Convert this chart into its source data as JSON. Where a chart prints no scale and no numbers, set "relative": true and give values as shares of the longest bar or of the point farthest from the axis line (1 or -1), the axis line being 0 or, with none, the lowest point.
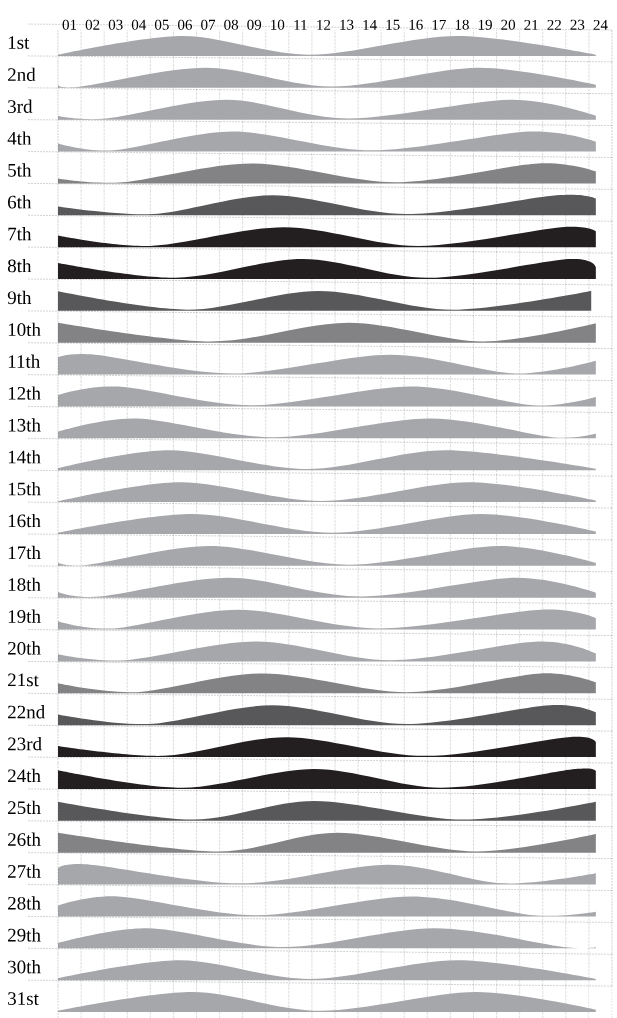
{
  "chart_data": [
    {
      "type": "area",
      "title": "1st",
      "relative": true,
      "color": "#a6a7ab",
      "xlim": [
        0,
        24
      ],
      "grid": true,
      "tick_labels": "x",
      "xticks": [
        {
          "value": 0.5,
          "label": "01"
        },
        {
          "value": 1.5,
          "label": "02"
        },
        {
          "value": 2.5,
          "label": "03"
        },
        {
          "value": 3.5,
          "label": "04"
        },
        {
          "value": 4.5,
          "label": "05"
        },
        {
          "value": 5.5,
          "label": "06"
        },
        {
          "value": 6.5,
          "label": "07"
        },
        {
          "value": 7.5,
          "label": "08"
        },
        {
          "value": 8.5,
          "label": "09"
        },
        {
          "value": 9.5,
          "label": "10"
        },
        {
          "value": 10.5,
          "label": "11"
        },
        {
          "value": 11.5,
          "label": "12"
        },
        {
          "value": 12.5,
          "label": "13"
        },
        {
          "value": 13.5,
          "label": "14"
        },
        {
          "value": 14.5,
          "label": "15"
        },
        {
          "value": 15.5,
          "label": "16"
        },
        {
          "value": 16.5,
          "label": "17"
        },
        {
          "value": 17.5,
          "label": "18"
        },
        {
          "value": 18.5,
          "label": "19"
        },
        {
          "value": 19.5,
          "label": "20"
        },
        {
          "value": 20.5,
          "label": "21"
        },
        {
          "value": 21.5,
          "label": "22"
        },
        {
          "value": 22.5,
          "label": "23"
        },
        {
          "value": 23.5,
          "label": "24"
        }
      ],
      "x": [
        0,
        5.4,
        10.9,
        17.3,
        23.3
      ],
      "values": [
        0.06,
        1,
        0.06,
        1,
        0.06
      ]
    },
    {
      "type": "area",
      "title": "2nd",
      "relative": true,
      "color": "#a6a7ab",
      "xlim": [
        0,
        24
      ],
      "grid": true,
      "tick_labels": false,
      "xticks": [
        0.5,
        1.5,
        2.5,
        3.5,
        4.5,
        5.5,
        6.5,
        7.5,
        8.5,
        9.5,
        10.5,
        11.5,
        12.5,
        13.5,
        14.5,
        15.5,
        16.5,
        17.5,
        18.5,
        19.5,
        20.5,
        21.5,
        22.5,
        23.5
      ],
      "x": [
        0,
        1,
        6.4,
        11.9,
        18.2,
        23.3
      ],
      "values": [
        0.14,
        0.06,
        1,
        0.06,
        1,
        0.15
      ]
    },
    {
      "type": "area",
      "title": "3rd",
      "relative": true,
      "color": "#a6a7ab",
      "xlim": [
        0,
        24
      ],
      "grid": true,
      "tick_labels": false,
      "xticks": [
        0.5,
        1.5,
        2.5,
        3.5,
        4.5,
        5.5,
        6.5,
        7.5,
        8.5,
        9.5,
        10.5,
        11.5,
        12.5,
        13.5,
        14.5,
        15.5,
        16.5,
        17.5,
        18.5,
        19.5,
        20.5,
        21.5,
        22.5,
        23.5
      ],
      "x": [
        0,
        2.1,
        7.3,
        12.6,
        19.6,
        23.3
      ],
      "values": [
        0.18,
        0.06,
        1,
        0.06,
        1,
        0.2
      ]
    },
    {
      "type": "area",
      "title": "4th",
      "relative": true,
      "color": "#a6a7ab",
      "xlim": [
        0,
        24
      ],
      "grid": true,
      "tick_labels": false,
      "xticks": [
        0.5,
        1.5,
        2.5,
        3.5,
        4.5,
        5.5,
        6.5,
        7.5,
        8.5,
        9.5,
        10.5,
        11.5,
        12.5,
        13.5,
        14.5,
        15.5,
        16.5,
        17.5,
        18.5,
        19.5,
        20.5,
        21.5,
        22.5,
        23.5
      ],
      "x": [
        0,
        2.4,
        7.6,
        13.6,
        20.4,
        23.3
      ],
      "values": [
        0.4,
        0.06,
        1,
        0.06,
        1,
        0.5
      ]
    },
    {
      "type": "area",
      "title": "5th",
      "relative": true,
      "color": "#838386",
      "xlim": [
        0,
        24
      ],
      "grid": true,
      "tick_labels": false,
      "xticks": [
        0.5,
        1.5,
        2.5,
        3.5,
        4.5,
        5.5,
        6.5,
        7.5,
        8.5,
        9.5,
        10.5,
        11.5,
        12.5,
        13.5,
        14.5,
        15.5,
        16.5,
        17.5,
        18.5,
        19.5,
        20.5,
        21.5,
        22.5,
        23.5
      ],
      "x": [
        0,
        2.8,
        8.4,
        14.6,
        20.8,
        23.3
      ],
      "values": [
        0.25,
        0.06,
        1,
        0.06,
        1,
        0.6
      ]
    },
    {
      "type": "area",
      "title": "6th",
      "relative": true,
      "color": "#58585a",
      "xlim": [
        0,
        24
      ],
      "grid": true,
      "tick_labels": false,
      "xticks": [
        0.5,
        1.5,
        2.5,
        3.5,
        4.5,
        5.5,
        6.5,
        7.5,
        8.5,
        9.5,
        10.5,
        11.5,
        12.5,
        13.5,
        14.5,
        15.5,
        16.5,
        17.5,
        18.5,
        19.5,
        20.5,
        21.5,
        22.5,
        23.5
      ],
      "x": [
        0,
        4.1,
        9.3,
        15.1,
        21.6,
        23.3
      ],
      "values": [
        0.44,
        0.06,
        1,
        0.06,
        1,
        0.84
      ]
    },
    {
      "type": "area",
      "title": "7th",
      "relative": true,
      "color": "#231f20",
      "xlim": [
        0,
        24
      ],
      "grid": true,
      "tick_labels": false,
      "xticks": [
        0.5,
        1.5,
        2.5,
        3.5,
        4.5,
        5.5,
        6.5,
        7.5,
        8.5,
        9.5,
        10.5,
        11.5,
        12.5,
        13.5,
        14.5,
        15.5,
        16.5,
        17.5,
        18.5,
        19.5,
        20.5,
        21.5,
        22.5,
        23.5
      ],
      "x": [
        0,
        4,
        9.8,
        15.6,
        21.8,
        23.3
      ],
      "values": [
        0.58,
        0.06,
        1,
        0.06,
        1,
        0.8
      ]
    },
    {
      "type": "area",
      "title": "8th",
      "relative": true,
      "color": "#231f20",
      "xlim": [
        0,
        24
      ],
      "grid": true,
      "tick_labels": false,
      "xticks": [
        0.5,
        1.5,
        2.5,
        3.5,
        4.5,
        5.5,
        6.5,
        7.5,
        8.5,
        9.5,
        10.5,
        11.5,
        12.5,
        13.5,
        14.5,
        15.5,
        16.5,
        17.5,
        18.5,
        19.5,
        20.5,
        21.5,
        22.5,
        23.5
      ],
      "x": [
        0,
        5.1,
        10.6,
        16,
        22.1,
        23.3
      ],
      "values": [
        0.8,
        0.06,
        1,
        0.06,
        1,
        0.6
      ]
    },
    {
      "type": "area",
      "title": "9th",
      "relative": true,
      "color": "#58585a",
      "xlim": [
        0,
        24
      ],
      "grid": true,
      "tick_labels": false,
      "xticks": [
        0.5,
        1.5,
        2.5,
        3.5,
        4.5,
        5.5,
        6.5,
        7.5,
        8.5,
        9.5,
        10.5,
        11.5,
        12.5,
        13.5,
        14.5,
        15.5,
        16.5,
        17.5,
        18.5,
        19.5,
        20.5,
        21.5,
        22.5,
        23.5
      ],
      "x": [
        0,
        5.6,
        11.3,
        17.1,
        23.1
      ],
      "values": [
        0.98,
        0.06,
        1,
        0.06,
        1
      ]
    },
    {
      "type": "area",
      "title": "10th",
      "relative": true,
      "color": "#838386",
      "xlim": [
        0,
        24
      ],
      "grid": true,
      "tick_labels": false,
      "xticks": [
        0.5,
        1.5,
        2.5,
        3.5,
        4.5,
        5.5,
        6.5,
        7.5,
        8.5,
        9.5,
        10.5,
        11.5,
        12.5,
        13.5,
        14.5,
        15.5,
        16.5,
        17.5,
        18.5,
        19.5,
        20.5,
        21.5,
        22.5,
        23.5
      ],
      "x": [
        0,
        6.6,
        12.6,
        18.4,
        23.3
      ],
      "values": [
        1,
        0.06,
        1,
        0.06,
        0.98
      ]
    },
    {
      "type": "area",
      "title": "11th",
      "relative": true,
      "color": "#a6a7ab",
      "xlim": [
        0,
        24
      ],
      "grid": true,
      "tick_labels": false,
      "xticks": [
        0.5,
        1.5,
        2.5,
        3.5,
        4.5,
        5.5,
        6.5,
        7.5,
        8.5,
        9.5,
        10.5,
        11.5,
        12.5,
        13.5,
        14.5,
        15.5,
        16.5,
        17.5,
        18.5,
        19.5,
        20.5,
        21.5,
        22.5,
        23.5
      ],
      "x": [
        0,
        1.6,
        7.6,
        14.4,
        19.8,
        23.3
      ],
      "values": [
        0.87,
        1,
        0.06,
        1,
        0.06,
        0.7
      ]
    },
    {
      "type": "area",
      "title": "12th",
      "relative": true,
      "color": "#a6a7ab",
      "xlim": [
        0,
        24
      ],
      "grid": true,
      "tick_labels": false,
      "xticks": [
        0.5,
        1.5,
        2.5,
        3.5,
        4.5,
        5.5,
        6.5,
        7.5,
        8.5,
        9.5,
        10.5,
        11.5,
        12.5,
        13.5,
        14.5,
        15.5,
        16.5,
        17.5,
        18.5,
        19.5,
        20.5,
        21.5,
        22.5,
        23.5
      ],
      "x": [
        0,
        2.6,
        8.4,
        15.3,
        20.6,
        23.3
      ],
      "values": [
        0.58,
        1,
        0.06,
        1,
        0.06,
        0.48
      ]
    },
    {
      "type": "area",
      "title": "13th",
      "relative": true,
      "color": "#a6a7ab",
      "xlim": [
        0,
        24
      ],
      "grid": true,
      "tick_labels": false,
      "xticks": [
        0.5,
        1.5,
        2.5,
        3.5,
        4.5,
        5.5,
        6.5,
        7.5,
        8.5,
        9.5,
        10.5,
        11.5,
        12.5,
        13.5,
        14.5,
        15.5,
        16.5,
        17.5,
        18.5,
        19.5,
        20.5,
        21.5,
        22.5,
        23.5
      ],
      "x": [
        0,
        3.4,
        9.3,
        16.1,
        21.4,
        23.3
      ],
      "values": [
        0.34,
        1,
        0.06,
        1,
        0.06,
        0.24
      ]
    },
    {
      "type": "area",
      "title": "14th",
      "relative": true,
      "color": "#a6a7ab",
      "xlim": [
        0,
        24
      ],
      "grid": true,
      "tick_labels": false,
      "xticks": [
        0.5,
        1.5,
        2.5,
        3.5,
        4.5,
        5.5,
        6.5,
        7.5,
        8.5,
        9.5,
        10.5,
        11.5,
        12.5,
        13.5,
        14.5,
        15.5,
        16.5,
        17.5,
        18.5,
        19.5,
        20.5,
        21.5,
        22.5,
        23.5
      ],
      "x": [
        0,
        4.8,
        10.8,
        16.8,
        23.3
      ],
      "values": [
        0.1,
        1,
        0.06,
        1,
        0.07
      ]
    },
    {
      "type": "area",
      "title": "15th",
      "relative": true,
      "color": "#a6a7ab",
      "xlim": [
        0,
        24
      ],
      "grid": true,
      "tick_labels": false,
      "xticks": [
        0.5,
        1.5,
        2.5,
        3.5,
        4.5,
        5.5,
        6.5,
        7.5,
        8.5,
        9.5,
        10.5,
        11.5,
        12.5,
        13.5,
        14.5,
        15.5,
        16.5,
        17.5,
        18.5,
        19.5,
        20.5,
        21.5,
        22.5,
        23.5
      ],
      "x": [
        0,
        5.3,
        11.4,
        17.8,
        23.3
      ],
      "values": [
        0.04,
        1,
        0.06,
        1,
        0.08
      ]
    },
    {
      "type": "area",
      "title": "16th",
      "relative": true,
      "color": "#a6a7ab",
      "xlim": [
        0,
        24
      ],
      "grid": true,
      "tick_labels": false,
      "xticks": [
        0.5,
        1.5,
        2.5,
        3.5,
        4.5,
        5.5,
        6.5,
        7.5,
        8.5,
        9.5,
        10.5,
        11.5,
        12.5,
        13.5,
        14.5,
        15.5,
        16.5,
        17.5,
        18.5,
        19.5,
        20.5,
        21.5,
        22.5,
        23.5
      ],
      "x": [
        0,
        5.8,
        11.9,
        18.3,
        23.3
      ],
      "values": [
        0.06,
        1,
        0.06,
        1,
        0.12
      ]
    },
    {
      "type": "area",
      "title": "17th",
      "relative": true,
      "color": "#a6a7ab",
      "xlim": [
        0,
        24
      ],
      "grid": true,
      "tick_labels": false,
      "xticks": [
        0.5,
        1.5,
        2.5,
        3.5,
        4.5,
        5.5,
        6.5,
        7.5,
        8.5,
        9.5,
        10.5,
        11.5,
        12.5,
        13.5,
        14.5,
        15.5,
        16.5,
        17.5,
        18.5,
        19.5,
        20.5,
        21.5,
        22.5,
        23.5
      ],
      "x": [
        0,
        1.3,
        6.6,
        12.6,
        19.1,
        23.3
      ],
      "values": [
        0.15,
        0.06,
        1,
        0.06,
        1,
        0.15
      ]
    },
    {
      "type": "area",
      "title": "18th",
      "relative": true,
      "color": "#a6a7ab",
      "xlim": [
        0,
        24
      ],
      "grid": true,
      "tick_labels": false,
      "xticks": [
        0.5,
        1.5,
        2.5,
        3.5,
        4.5,
        5.5,
        6.5,
        7.5,
        8.5,
        9.5,
        10.5,
        11.5,
        12.5,
        13.5,
        14.5,
        15.5,
        16.5,
        17.5,
        18.5,
        19.5,
        20.5,
        21.5,
        22.5,
        23.5
      ],
      "x": [
        0,
        1.8,
        7.4,
        13.1,
        19.8,
        23.3
      ],
      "values": [
        0.29,
        0.06,
        1,
        0.06,
        1,
        0.25
      ]
    },
    {
      "type": "area",
      "title": "19th",
      "relative": true,
      "color": "#a6a7ab",
      "xlim": [
        0,
        24
      ],
      "grid": true,
      "tick_labels": false,
      "xticks": [
        0.5,
        1.5,
        2.5,
        3.5,
        4.5,
        5.5,
        6.5,
        7.5,
        8.5,
        9.5,
        10.5,
        11.5,
        12.5,
        13.5,
        14.5,
        15.5,
        16.5,
        17.5,
        18.5,
        19.5,
        20.5,
        21.5,
        22.5,
        23.5
      ],
      "x": [
        0,
        2.4,
        7.8,
        13.9,
        20.9,
        23.3
      ],
      "values": [
        0.42,
        0.06,
        1,
        0.06,
        1,
        0.58
      ]
    },
    {
      "type": "area",
      "title": "20th",
      "relative": true,
      "color": "#a6a7ab",
      "xlim": [
        0,
        24
      ],
      "grid": true,
      "tick_labels": false,
      "xticks": [
        0.5,
        1.5,
        2.5,
        3.5,
        4.5,
        5.5,
        6.5,
        7.5,
        8.5,
        9.5,
        10.5,
        11.5,
        12.5,
        13.5,
        14.5,
        15.5,
        16.5,
        17.5,
        18.5,
        19.5,
        20.5,
        21.5,
        22.5,
        23.5
      ],
      "x": [
        0,
        2.9,
        8.6,
        14.4,
        20.8,
        23.3
      ],
      "values": [
        0.36,
        0.06,
        1,
        0.06,
        1,
        0.4
      ]
    },
    {
      "type": "area",
      "title": "21st",
      "relative": true,
      "color": "#838386",
      "xlim": [
        0,
        24
      ],
      "grid": true,
      "tick_labels": false,
      "xticks": [
        0.5,
        1.5,
        2.5,
        3.5,
        4.5,
        5.5,
        6.5,
        7.5,
        8.5,
        9.5,
        10.5,
        11.5,
        12.5,
        13.5,
        14.5,
        15.5,
        16.5,
        17.5,
        18.5,
        19.5,
        20.5,
        21.5,
        22.5,
        23.5
      ],
      "x": [
        0,
        3.4,
        8.9,
        15.1,
        20.9,
        23.3
      ],
      "values": [
        0.5,
        0.06,
        1,
        0.06,
        1,
        0.55
      ]
    },
    {
      "type": "area",
      "title": "22nd",
      "relative": true,
      "color": "#58585a",
      "xlim": [
        0,
        24
      ],
      "grid": true,
      "tick_labels": false,
      "xticks": [
        0.5,
        1.5,
        2.5,
        3.5,
        4.5,
        5.5,
        6.5,
        7.5,
        8.5,
        9.5,
        10.5,
        11.5,
        12.5,
        13.5,
        14.5,
        15.5,
        16.5,
        17.5,
        18.5,
        19.5,
        20.5,
        21.5,
        22.5,
        23.5
      ],
      "x": [
        0,
        3.9,
        9.3,
        15.1,
        21.3,
        23.3
      ],
      "values": [
        0.54,
        0.06,
        1,
        0.06,
        1,
        0.64
      ]
    },
    {
      "type": "area",
      "title": "23rd",
      "relative": true,
      "color": "#231f20",
      "xlim": [
        0,
        24
      ],
      "grid": true,
      "tick_labels": false,
      "xticks": [
        0.5,
        1.5,
        2.5,
        3.5,
        4.5,
        5.5,
        6.5,
        7.5,
        8.5,
        9.5,
        10.5,
        11.5,
        12.5,
        13.5,
        14.5,
        15.5,
        16.5,
        17.5,
        18.5,
        19.5,
        20.5,
        21.5,
        22.5,
        23.5
      ],
      "x": [
        0,
        4.6,
        9.9,
        15.9,
        22.1,
        23.3
      ],
      "values": [
        0.55,
        0.06,
        1,
        0.06,
        1,
        0.75
      ]
    },
    {
      "type": "area",
      "title": "24th",
      "relative": true,
      "color": "#231f20",
      "xlim": [
        0,
        24
      ],
      "grid": true,
      "tick_labels": false,
      "xticks": [
        0.5,
        1.5,
        2.5,
        3.5,
        4.5,
        5.5,
        6.5,
        7.5,
        8.5,
        9.5,
        10.5,
        11.5,
        12.5,
        13.5,
        14.5,
        15.5,
        16.5,
        17.5,
        18.5,
        19.5,
        20.5,
        21.5,
        22.5,
        23.5
      ],
      "x": [
        0,
        5.4,
        11.1,
        16.6,
        22.4,
        23.3
      ],
      "values": [
        0.94,
        0.06,
        1,
        0.06,
        1,
        0.84
      ]
    },
    {
      "type": "area",
      "title": "25th",
      "relative": true,
      "color": "#58585a",
      "xlim": [
        0,
        24
      ],
      "grid": true,
      "tick_labels": false,
      "xticks": [
        0.5,
        1.5,
        2.5,
        3.5,
        4.5,
        5.5,
        6.5,
        7.5,
        8.5,
        9.5,
        10.5,
        11.5,
        12.5,
        13.5,
        14.5,
        15.5,
        16.5,
        17.5,
        18.5,
        19.5,
        20.5,
        21.5,
        22.5,
        23.5
      ],
      "x": [
        0,
        5.9,
        11.1,
        17.6,
        23.3
      ],
      "values": [
        0.96,
        0.06,
        1,
        0.06,
        0.96
      ]
    },
    {
      "type": "area",
      "title": "26th",
      "relative": true,
      "color": "#838386",
      "xlim": [
        0,
        24
      ],
      "grid": true,
      "tick_labels": false,
      "xticks": [
        0.5,
        1.5,
        2.5,
        3.5,
        4.5,
        5.5,
        6.5,
        7.5,
        8.5,
        9.5,
        10.5,
        11.5,
        12.5,
        13.5,
        14.5,
        15.5,
        16.5,
        17.5,
        18.5,
        19.5,
        20.5,
        21.5,
        22.5,
        23.5
      ],
      "x": [
        0,
        6.9,
        12.1,
        18.1,
        23.3
      ],
      "values": [
        1,
        0.06,
        1,
        0.06,
        0.94
      ]
    },
    {
      "type": "area",
      "title": "27th",
      "relative": true,
      "color": "#a6a7ab",
      "xlim": [
        0,
        24
      ],
      "grid": true,
      "tick_labels": false,
      "xticks": [
        0.5,
        1.5,
        2.5,
        3.5,
        4.5,
        5.5,
        6.5,
        7.5,
        8.5,
        9.5,
        10.5,
        11.5,
        12.5,
        13.5,
        14.5,
        15.5,
        16.5,
        17.5,
        18.5,
        19.5,
        20.5,
        21.5,
        22.5,
        23.5
      ],
      "x": [
        0,
        1.4,
        7.9,
        14.3,
        19.3,
        23.3
      ],
      "values": [
        0.82,
        1,
        0.06,
        1,
        0.06,
        0.57
      ]
    },
    {
      "type": "area",
      "title": "28th",
      "relative": true,
      "color": "#a6a7ab",
      "xlim": [
        0,
        24
      ],
      "grid": true,
      "tick_labels": false,
      "xticks": [
        0.5,
        1.5,
        2.5,
        3.5,
        4.5,
        5.5,
        6.5,
        7.5,
        8.5,
        9.5,
        10.5,
        11.5,
        12.5,
        13.5,
        14.5,
        15.5,
        16.5,
        17.5,
        18.5,
        19.5,
        20.5,
        21.5,
        22.5,
        23.5
      ],
      "x": [
        0,
        2.6,
        8.6,
        15.3,
        20.6,
        23.3
      ],
      "values": [
        0.54,
        1,
        0.06,
        1,
        0.06,
        0.24
      ]
    },
    {
      "type": "area",
      "title": "29th",
      "relative": true,
      "color": "#a6a7ab",
      "xlim": [
        0,
        24
      ],
      "grid": true,
      "tick_labels": false,
      "xticks": [
        0.5,
        1.5,
        2.5,
        3.5,
        4.5,
        5.5,
        6.5,
        7.5,
        8.5,
        9.5,
        10.5,
        11.5,
        12.5,
        13.5,
        14.5,
        15.5,
        16.5,
        17.5,
        18.5,
        19.5,
        20.5,
        21.5,
        22.5,
        23.5
      ],
      "x": [
        0,
        3.9,
        9.8,
        16.3,
        21.9,
        23.3
      ],
      "values": [
        0.26,
        1,
        0.06,
        1,
        0.06,
        0.06
      ]
    },
    {
      "type": "area",
      "title": "30th",
      "relative": true,
      "color": "#a6a7ab",
      "xlim": [
        0,
        24
      ],
      "grid": true,
      "tick_labels": false,
      "xticks": [
        0.5,
        1.5,
        2.5,
        3.5,
        4.5,
        5.5,
        6.5,
        7.5,
        8.5,
        9.5,
        10.5,
        11.5,
        12.5,
        13.5,
        14.5,
        15.5,
        16.5,
        17.5,
        18.5,
        19.5,
        20.5,
        21.5,
        22.5,
        23.5
      ],
      "x": [
        0,
        5.3,
        10.9,
        17.3,
        23.3
      ],
      "values": [
        0.1,
        1,
        0.06,
        1,
        0.06
      ]
    },
    {
      "type": "area",
      "title": "31st",
      "relative": true,
      "color": "#a6a7ab",
      "xlim": [
        0,
        24
      ],
      "grid": true,
      "tick_labels": false,
      "xticks": [
        0.5,
        1.5,
        2.5,
        3.5,
        4.5,
        5.5,
        6.5,
        7.5,
        8.5,
        9.5,
        10.5,
        11.5,
        12.5,
        13.5,
        14.5,
        15.5,
        16.5,
        17.5,
        18.5,
        19.5,
        20.5,
        21.5,
        22.5,
        23.5
      ],
      "x": [
        0,
        5.8,
        11.4,
        18.1,
        23.3
      ],
      "values": [
        0.06,
        1,
        0.06,
        1,
        0.12
      ]
    }
  ]
}
